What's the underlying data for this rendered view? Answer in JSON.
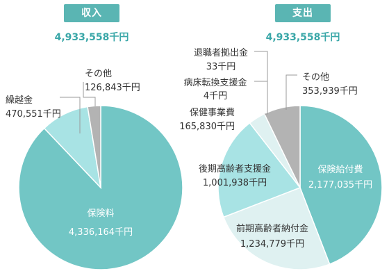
{
  "income": {
    "badge": "収入",
    "total": "4,933,558千円"
  },
  "expense": {
    "badge": "支出",
    "total": "4,933,558千円"
  },
  "colors": {
    "badge": "#5ab5b3",
    "total_text": "#3aa7a8",
    "label_text": "#333333",
    "leader_line": "#9a9a9a",
    "slice_dark": "#72c6c5",
    "slice_light": "#a8e3e4",
    "slice_pale": "#dff1f1",
    "slice_gray": "#b3b3b3"
  },
  "chart_data": [
    {
      "type": "pie",
      "title": "収入",
      "unit": "千円",
      "slices": [
        {
          "label": "保険料",
          "value": 4336164,
          "value_label": "4,336,164千円",
          "color": "#72c6c5"
        },
        {
          "label": "繰越金",
          "value": 470551,
          "value_label": "470,551千円",
          "color": "#a8e3e4"
        },
        {
          "label": "その他",
          "value": 126843,
          "value_label": "126,843千円",
          "color": "#b3b3b3"
        }
      ]
    },
    {
      "type": "pie",
      "title": "支出",
      "unit": "千円",
      "slices": [
        {
          "label": "保険給付費",
          "value": 2177035,
          "value_label": "2,177,035千円",
          "color": "#72c6c5"
        },
        {
          "label": "前期高齢者納付金",
          "value": 1234779,
          "value_label": "1,234,779千円",
          "color": "#dff1f1"
        },
        {
          "label": "後期高齢者支援金",
          "value": 1001938,
          "value_label": "1,001,938千円",
          "color": "#a8e3e4"
        },
        {
          "label": "保健事業費",
          "value": 165830,
          "value_label": "165,830千円",
          "color": "#dff1f1"
        },
        {
          "label": "退職者拠出金",
          "value": 33,
          "value_label": "33千円",
          "color": "#dff1f1"
        },
        {
          "label": "病床転換支援金",
          "value": 4,
          "value_label": "4千円",
          "color": "#dff1f1"
        },
        {
          "label": "その他",
          "value": 353939,
          "value_label": "353,939千円",
          "color": "#b3b3b3"
        }
      ]
    }
  ]
}
